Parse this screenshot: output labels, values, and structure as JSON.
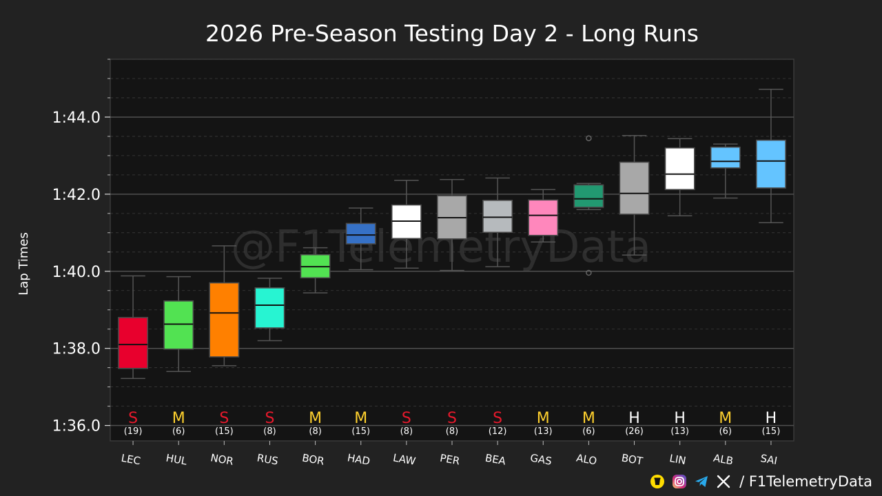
{
  "watermark": "@F1TelemetryData",
  "footer": {
    "icons": [
      "buymeacoffee-icon",
      "instagram-icon",
      "telegram-icon",
      "x-icon"
    ],
    "handle": "/ F1TelemetryData"
  },
  "colors": {
    "background": "#222222",
    "plot_background": "#141414",
    "soft": "#e8192c",
    "medium": "#ffd12e",
    "hard": "#ffffff"
  },
  "chart_data": {
    "type": "box",
    "title": "2026 Pre-Season Testing Day 2 - Long Runs",
    "ylabel": "Lap Times",
    "ylim": [
      95.6,
      105.5
    ],
    "yticks": [
      96,
      98,
      100,
      102,
      104
    ],
    "ytick_labels": [
      "1:36.0",
      "1:38.0",
      "1:40.0",
      "1:42.0",
      "1:44.0"
    ],
    "grid": true,
    "drivers": [
      {
        "code": "LEC",
        "compound": "S",
        "laps": "(19)",
        "color": "#e8002d",
        "min": 97.22,
        "q1": 97.48,
        "median": 98.1,
        "q3": 98.8,
        "max": 99.88,
        "outliers": []
      },
      {
        "code": "HUL",
        "compound": "M",
        "laps": "(6)",
        "color": "#52e252",
        "min": 97.4,
        "q1": 97.98,
        "median": 98.63,
        "q3": 99.23,
        "max": 99.86,
        "outliers": []
      },
      {
        "code": "NOR",
        "compound": "S",
        "laps": "(15)",
        "color": "#ff8000",
        "min": 97.55,
        "q1": 97.78,
        "median": 98.92,
        "q3": 99.7,
        "max": 100.66,
        "outliers": []
      },
      {
        "code": "RUS",
        "compound": "S",
        "laps": "(8)",
        "color": "#27f4d2",
        "min": 98.2,
        "q1": 98.53,
        "median": 99.12,
        "q3": 99.57,
        "max": 99.82,
        "outliers": []
      },
      {
        "code": "BOR",
        "compound": "M",
        "laps": "(8)",
        "color": "#52e252",
        "min": 99.44,
        "q1": 99.83,
        "median": 100.12,
        "q3": 100.43,
        "max": 100.61,
        "outliers": []
      },
      {
        "code": "HAD",
        "compound": "M",
        "laps": "(15)",
        "color": "#3671c6",
        "min": 100.04,
        "q1": 100.71,
        "median": 100.94,
        "q3": 101.24,
        "max": 101.64,
        "outliers": []
      },
      {
        "code": "LAW",
        "compound": "S",
        "laps": "(8)",
        "color": "#ffffff",
        "min": 100.08,
        "q1": 100.85,
        "median": 101.3,
        "q3": 101.72,
        "max": 102.36,
        "outliers": []
      },
      {
        "code": "PER",
        "compound": "S",
        "laps": "(8)",
        "color": "#a8a8a8",
        "min": 100.02,
        "q1": 100.84,
        "median": 101.39,
        "q3": 101.96,
        "max": 102.38,
        "outliers": []
      },
      {
        "code": "BEA",
        "compound": "S",
        "laps": "(12)",
        "color": "#b6babd",
        "min": 100.12,
        "q1": 101.01,
        "median": 101.4,
        "q3": 101.84,
        "max": 102.42,
        "outliers": []
      },
      {
        "code": "GAS",
        "compound": "M",
        "laps": "(13)",
        "color": "#ff87bc",
        "min": 100.76,
        "q1": 100.93,
        "median": 101.45,
        "q3": 101.85,
        "max": 102.12,
        "outliers": []
      },
      {
        "code": "ALO",
        "compound": "M",
        "laps": "(6)",
        "color": "#229971",
        "min": 101.6,
        "q1": 101.66,
        "median": 101.88,
        "q3": 102.24,
        "max": 102.28,
        "outliers": [
          99.96,
          103.45
        ]
      },
      {
        "code": "BOT",
        "compound": "H",
        "laps": "(26)",
        "color": "#a8a8a8",
        "min": 100.42,
        "q1": 101.48,
        "median": 102.02,
        "q3": 102.83,
        "max": 103.52,
        "outliers": []
      },
      {
        "code": "LIN",
        "compound": "H",
        "laps": "(13)",
        "color": "#ffffff",
        "min": 101.44,
        "q1": 102.12,
        "median": 102.52,
        "q3": 103.2,
        "max": 103.44,
        "outliers": []
      },
      {
        "code": "ALB",
        "compound": "M",
        "laps": "(6)",
        "color": "#64c4ff",
        "min": 101.9,
        "q1": 102.68,
        "median": 102.85,
        "q3": 103.22,
        "max": 103.3,
        "outliers": []
      },
      {
        "code": "SAI",
        "compound": "H",
        "laps": "(15)",
        "color": "#64c4ff",
        "min": 101.26,
        "q1": 102.16,
        "median": 102.86,
        "q3": 103.4,
        "max": 104.72,
        "outliers": []
      }
    ]
  }
}
